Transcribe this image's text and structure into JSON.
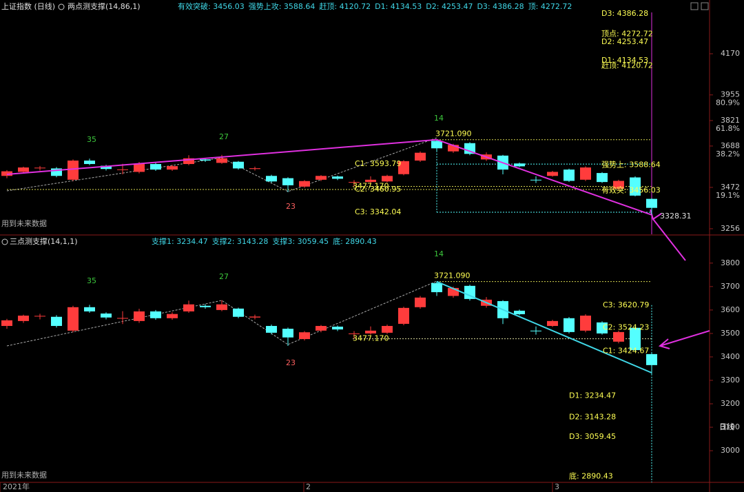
{
  "chart_data": [
    {
      "type": "candlestick",
      "title": "上证指数 (日线)",
      "indicator": "两点测支撑(14,86,1)",
      "indicator_values": [
        "有效突破: 3456.03",
        "强势上攻: 3588.64",
        "赶顶: 4120.72",
        "D1: 4134.53",
        "D2: 4253.47",
        "D3: 4386.28",
        "顶: 4272.72"
      ],
      "up_color": "#ff3c3c",
      "down_color": "#54ffff",
      "open": [
        3532,
        3553,
        3573,
        3571,
        3512,
        3612,
        3585,
        3563,
        3553,
        3594,
        3565,
        3594,
        3618,
        3600,
        3606,
        3568,
        3532,
        3520,
        3476,
        3512,
        3529,
        3497,
        3500,
        3503,
        3541,
        3612,
        3715,
        3660,
        3703,
        3618,
        3638,
        3597,
        3512,
        3532,
        3565,
        3512,
        3547,
        3465,
        3524,
        3412
      ],
      "high": [
        3562,
        3580,
        3584,
        3578,
        3618,
        3622,
        3590,
        3595,
        3605,
        3600,
        3590,
        3640,
        3625,
        3642,
        3610,
        3580,
        3538,
        3525,
        3510,
        3536,
        3534,
        3510,
        3530,
        3538,
        3614,
        3660,
        3721,
        3700,
        3708,
        3655,
        3642,
        3602,
        3530,
        3558,
        3570,
        3582,
        3552,
        3512,
        3530,
        3415
      ],
      "low": [
        3520,
        3545,
        3560,
        3525,
        3505,
        3588,
        3560,
        3540,
        3545,
        3558,
        3558,
        3588,
        3605,
        3595,
        3565,
        3560,
        3496,
        3447,
        3470,
        3505,
        3510,
        3477,
        3495,
        3498,
        3535,
        3605,
        3660,
        3652,
        3640,
        3610,
        3540,
        3578,
        3495,
        3528,
        3500,
        3505,
        3495,
        3458,
        3425,
        3328
      ],
      "close": [
        3556,
        3576,
        3575,
        3532,
        3612,
        3594,
        3568,
        3566,
        3594,
        3565,
        3583,
        3624,
        3612,
        3624,
        3571,
        3572,
        3503,
        3483,
        3505,
        3532,
        3517,
        3500,
        3512,
        3532,
        3609,
        3653,
        3676,
        3694,
        3647,
        3644,
        3565,
        3582,
        3510,
        3553,
        3506,
        3576,
        3500,
        3506,
        3429,
        3365
      ],
      "ylim": [
        3227,
        4386
      ],
      "yticks": [
        3256,
        3472,
        3688,
        3821,
        3955,
        4170
      ],
      "fib_labels": [
        "19.1%",
        "38.2%",
        "61.8%",
        "80.9%"
      ],
      "pivot_labels": [
        {
          "label": "35",
          "color": "#3cc83c"
        },
        {
          "label": "27",
          "color": "#3cc83c"
        },
        {
          "label": "23",
          "color": "#ff6060"
        },
        {
          "label": "14",
          "color": "#3cc83c"
        }
      ],
      "annotations": [
        {
          "label": "3721.090",
          "value": 3721.09,
          "color": "#ffff54"
        },
        {
          "label": "C1: 3593.79",
          "value": 3593.79,
          "color": "#ffff54"
        },
        {
          "label": "C2: 3460.95",
          "value": 3460.95,
          "color": "#ffff54"
        },
        {
          "label": "C3: 3342.04",
          "value": 3342.04,
          "color": "#ffff54"
        },
        {
          "label": "3477.170",
          "value": 3477.17,
          "color": "#ffff54"
        },
        {
          "label": "强势上: 3588.64",
          "value": 3588.64,
          "color": "#ffff54"
        },
        {
          "label": "有效突: 3456.03",
          "value": 3456.03,
          "color": "#ffff54"
        },
        {
          "label": "顶点: 4272.72",
          "value": 4272.72,
          "color": "#ffff54"
        },
        {
          "label": "D2: 4253.47",
          "value": 4253.47,
          "color": "#ffff54"
        },
        {
          "label": "D1: 4134.53",
          "value": 4134.53,
          "color": "#ffff54"
        },
        {
          "label": "赶顶: 4120.72",
          "value": 4120.72,
          "color": "#ffff54"
        },
        {
          "label": "D3: 4386.28",
          "value": 4386.28,
          "color": "#ffff54"
        },
        {
          "label": "3328.31",
          "value": 3328.31,
          "color": "#e0e0e0"
        }
      ],
      "note": "用到未来数据",
      "trend_color": "#e030e0"
    },
    {
      "type": "candlestick",
      "indicator": "三点测支撑(14,1,1)",
      "indicator_values": [
        "支撑1: 3234.47",
        "支撑2: 3143.28",
        "支撑3: 3059.45",
        "底: 2890.43"
      ],
      "up_color": "#ff3c3c",
      "down_color": "#54ffff",
      "open": [
        3532,
        3553,
        3573,
        3571,
        3512,
        3612,
        3585,
        3563,
        3553,
        3594,
        3565,
        3594,
        3618,
        3600,
        3606,
        3568,
        3532,
        3520,
        3476,
        3512,
        3529,
        3497,
        3500,
        3503,
        3541,
        3612,
        3715,
        3660,
        3703,
        3618,
        3638,
        3597,
        3512,
        3532,
        3565,
        3512,
        3547,
        3465,
        3524,
        3412
      ],
      "high": [
        3562,
        3580,
        3584,
        3578,
        3618,
        3622,
        3590,
        3595,
        3605,
        3600,
        3590,
        3640,
        3625,
        3642,
        3610,
        3580,
        3538,
        3525,
        3510,
        3536,
        3534,
        3510,
        3530,
        3538,
        3614,
        3660,
        3721,
        3700,
        3708,
        3655,
        3642,
        3602,
        3530,
        3558,
        3570,
        3582,
        3552,
        3512,
        3530,
        3415
      ],
      "low": [
        3520,
        3545,
        3560,
        3525,
        3505,
        3588,
        3560,
        3540,
        3545,
        3558,
        3558,
        3588,
        3605,
        3595,
        3565,
        3560,
        3496,
        3447,
        3470,
        3505,
        3510,
        3477,
        3495,
        3498,
        3535,
        3605,
        3660,
        3652,
        3640,
        3610,
        3540,
        3578,
        3495,
        3528,
        3500,
        3505,
        3495,
        3458,
        3425,
        3328
      ],
      "close": [
        3556,
        3576,
        3575,
        3532,
        3612,
        3594,
        3568,
        3566,
        3594,
        3565,
        3583,
        3624,
        3612,
        3624,
        3571,
        3572,
        3503,
        3483,
        3505,
        3532,
        3517,
        3500,
        3512,
        3532,
        3609,
        3653,
        3676,
        3694,
        3647,
        3644,
        3565,
        3582,
        3510,
        3553,
        3506,
        3576,
        3500,
        3506,
        3429,
        3365
      ],
      "ylim": [
        2865,
        3870
      ],
      "yticks": [
        3000,
        3100,
        3200,
        3300,
        3400,
        3500,
        3600,
        3700,
        3800
      ],
      "pivot_labels": [
        {
          "label": "35",
          "color": "#3cc83c"
        },
        {
          "label": "27",
          "color": "#3cc83c"
        },
        {
          "label": "23",
          "color": "#ff6060"
        },
        {
          "label": "14",
          "color": "#3cc83c"
        }
      ],
      "annotations": [
        {
          "label": "3721.090",
          "value": 3721.09,
          "color": "#ffff54"
        },
        {
          "label": "3477.170",
          "value": 3477.17,
          "color": "#ffff54"
        },
        {
          "label": "C3: 3620.79",
          "value": 3620.79,
          "color": "#ffff54"
        },
        {
          "label": "C2: 3524.23",
          "value": 3524.23,
          "color": "#ffff54"
        },
        {
          "label": "C1: 3424.67",
          "value": 3424.67,
          "color": "#ffff54"
        },
        {
          "label": "D1: 3234.47",
          "value": 3234.47,
          "color": "#ffff54"
        },
        {
          "label": "D2: 3143.28",
          "value": 3143.28,
          "color": "#ffff54"
        },
        {
          "label": "D3: 3059.45",
          "value": 3059.45,
          "color": "#ffff54"
        },
        {
          "label": "底: 2890.43",
          "value": 2890.43,
          "color": "#ffff54"
        }
      ],
      "note": "用到未来数据",
      "trend_color": "#40d8e8",
      "x_labels": [
        "2021年",
        "2",
        "3"
      ],
      "period": "日线"
    }
  ]
}
